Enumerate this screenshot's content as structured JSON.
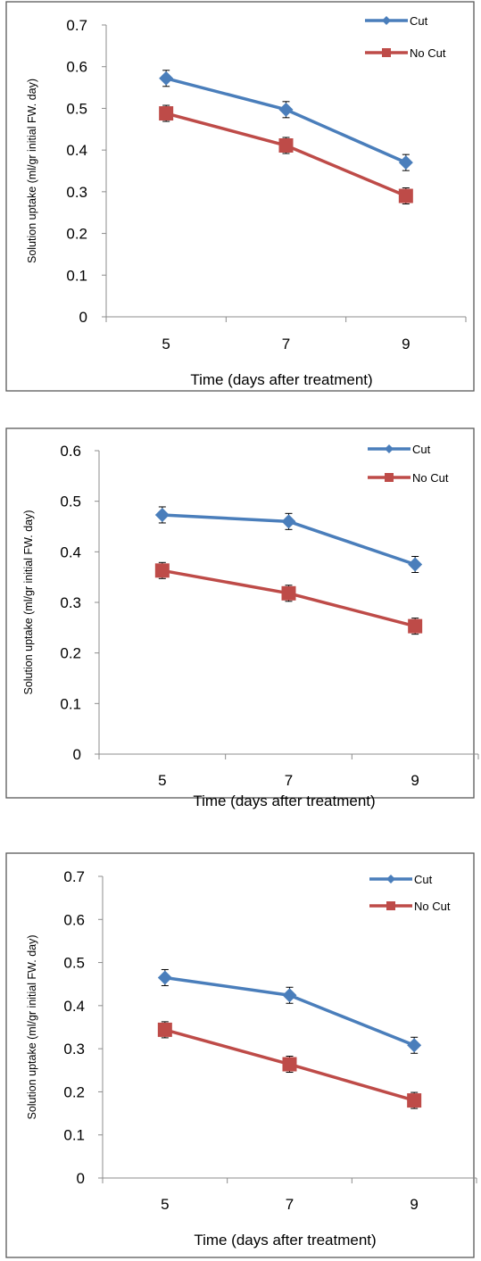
{
  "colors": {
    "cut": "#4a7ebb",
    "nocut": "#be4b48"
  },
  "chart_data": [
    {
      "type": "line",
      "title": "",
      "xlabel": "Time (days after treatment)",
      "ylabel": "Solution uptake (ml/gr initial FW. day)",
      "categories": [
        "5",
        "7",
        "9"
      ],
      "ylim": [
        0,
        0.7
      ],
      "yticks": [
        "0",
        "0.1",
        "0.2",
        "0.3",
        "0.4",
        "0.5",
        "0.6",
        "0.7"
      ],
      "legend_position": "top-right",
      "series": [
        {
          "name": "Cut",
          "values": [
            0.572,
            0.497,
            0.37
          ],
          "marker": "diamond",
          "color": "#4a7ebb"
        },
        {
          "name": "No Cut",
          "values": [
            0.488,
            0.411,
            0.29
          ],
          "marker": "square",
          "color": "#be4b48"
        }
      ]
    },
    {
      "type": "line",
      "title": "",
      "xlabel": "Time (days after treatment)",
      "ylabel": "Solution uptake (ml/gr initial FW. day)",
      "categories": [
        "5",
        "7",
        "9"
      ],
      "ylim": [
        0,
        0.6
      ],
      "yticks": [
        "0",
        "0.1",
        "0.2",
        "0.3",
        "0.4",
        "0.5",
        "0.6"
      ],
      "legend_position": "top-right",
      "series": [
        {
          "name": "Cut",
          "values": [
            0.473,
            0.46,
            0.375
          ],
          "marker": "diamond",
          "color": "#4a7ebb"
        },
        {
          "name": "No Cut",
          "values": [
            0.363,
            0.318,
            0.253
          ],
          "marker": "square",
          "color": "#be4b48"
        }
      ]
    },
    {
      "type": "line",
      "title": "",
      "xlabel": "Time (days after treatment)",
      "ylabel": "Solution uptake (ml/gr initial FW. day)",
      "categories": [
        "5",
        "7",
        "9"
      ],
      "ylim": [
        0,
        0.7
      ],
      "yticks": [
        "0",
        "0.1",
        "0.2",
        "0.3",
        "0.4",
        "0.5",
        "0.6",
        "0.7"
      ],
      "legend_position": "top-right",
      "series": [
        {
          "name": "Cut",
          "values": [
            0.465,
            0.424,
            0.308
          ],
          "marker": "diamond",
          "color": "#4a7ebb"
        },
        {
          "name": "No Cut",
          "values": [
            0.344,
            0.264,
            0.18
          ],
          "marker": "square",
          "color": "#be4b48"
        }
      ]
    }
  ]
}
